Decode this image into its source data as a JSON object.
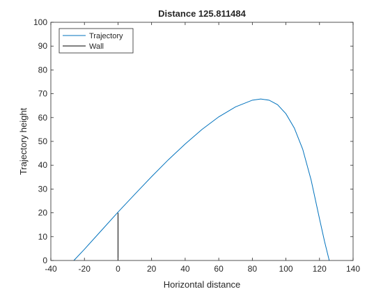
{
  "chart_data": {
    "type": "line",
    "title": "Distance 125.811484",
    "xlabel": "Horizontal distance",
    "ylabel": "Trajectory height",
    "xlim": [
      -40,
      140
    ],
    "ylim": [
      0,
      100
    ],
    "xticks": [
      -40,
      -20,
      0,
      20,
      40,
      60,
      80,
      100,
      120,
      140
    ],
    "yticks": [
      0,
      10,
      20,
      30,
      40,
      50,
      60,
      70,
      80,
      90,
      100
    ],
    "grid": false,
    "legend_position": "top-left",
    "series": [
      {
        "name": "Trajectory",
        "color": "#0072BD",
        "x": [
          -26.3,
          -20,
          -10,
          0,
          10,
          20,
          30,
          40,
          50,
          60,
          70,
          80,
          85,
          90,
          95,
          100,
          105,
          110,
          115,
          120,
          123,
          125.8
        ],
        "y": [
          0,
          4.7,
          12.5,
          20.3,
          27.8,
          35.2,
          42.3,
          48.9,
          55.0,
          60.3,
          64.5,
          67.3,
          67.8,
          67.3,
          65.4,
          61.6,
          55.6,
          46.7,
          33.8,
          17.5,
          8.0,
          0
        ]
      },
      {
        "name": "Wall",
        "color": "#000000",
        "x": [
          0,
          0
        ],
        "y": [
          0,
          20
        ]
      }
    ]
  }
}
